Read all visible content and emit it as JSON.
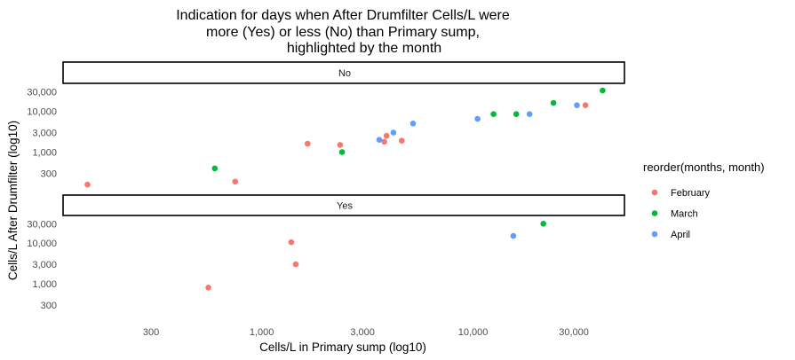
{
  "chart_data": {
    "type": "scatter",
    "title_lines": [
      "Indication for days when After Drumfilter Cells/L were",
      "more (Yes) or less (No) than Primary sump,",
      "highlighted by the month"
    ],
    "xlabel": "Cells/L in Primary sump (log10)",
    "ylabel": "Cells/L After Drumfilter (log10)",
    "x_scale": "log10",
    "y_scale": "log10",
    "xlim": [
      115,
      52000
    ],
    "ylim": [
      120,
      48000
    ],
    "x_ticks": [
      {
        "value": 300,
        "label": "300"
      },
      {
        "value": 1000,
        "label": "1,000"
      },
      {
        "value": 3000,
        "label": "3,000"
      },
      {
        "value": 10000,
        "label": "10,000"
      },
      {
        "value": 30000,
        "label": "30,000"
      }
    ],
    "y_ticks": [
      {
        "value": 300,
        "label": "300"
      },
      {
        "value": 1000,
        "label": "1,000"
      },
      {
        "value": 3000,
        "label": "3,000"
      },
      {
        "value": 10000,
        "label": "10,000"
      },
      {
        "value": 30000,
        "label": "30,000"
      }
    ],
    "grid": false,
    "legend": {
      "title": "reorder(months, month)",
      "placement": "right",
      "entries": [
        {
          "name": "February",
          "color": "#F8766D"
        },
        {
          "name": "March",
          "color": "#00BA38"
        },
        {
          "name": "April",
          "color": "#619CFF"
        }
      ]
    },
    "panels": [
      {
        "strip": "No",
        "series": [
          {
            "name": "February",
            "points": [
              {
                "x": 150,
                "y": 160
              },
              {
                "x": 750,
                "y": 190
              },
              {
                "x": 1650,
                "y": 1600
              },
              {
                "x": 2350,
                "y": 1500
              },
              {
                "x": 3800,
                "y": 1800
              },
              {
                "x": 3900,
                "y": 2500
              },
              {
                "x": 4600,
                "y": 1900
              },
              {
                "x": 34000,
                "y": 14000
              }
            ]
          },
          {
            "name": "March",
            "points": [
              {
                "x": 600,
                "y": 400
              },
              {
                "x": 2400,
                "y": 1000
              },
              {
                "x": 12500,
                "y": 8500
              },
              {
                "x": 16000,
                "y": 8500
              },
              {
                "x": 24000,
                "y": 16000
              },
              {
                "x": 41000,
                "y": 32000
              }
            ]
          },
          {
            "name": "April",
            "points": [
              {
                "x": 3600,
                "y": 2000
              },
              {
                "x": 4200,
                "y": 3000
              },
              {
                "x": 5200,
                "y": 5000
              },
              {
                "x": 10500,
                "y": 6500
              },
              {
                "x": 18500,
                "y": 8500
              },
              {
                "x": 31000,
                "y": 14000
              }
            ]
          }
        ]
      },
      {
        "strip": "Yes",
        "series": [
          {
            "name": "February",
            "points": [
              {
                "x": 560,
                "y": 800
              },
              {
                "x": 1380,
                "y": 10500
              },
              {
                "x": 1450,
                "y": 3000
              }
            ]
          },
          {
            "name": "March",
            "points": [
              {
                "x": 21500,
                "y": 30000
              }
            ]
          },
          {
            "name": "April",
            "points": [
              {
                "x": 15500,
                "y": 15000
              }
            ]
          }
        ]
      }
    ]
  }
}
